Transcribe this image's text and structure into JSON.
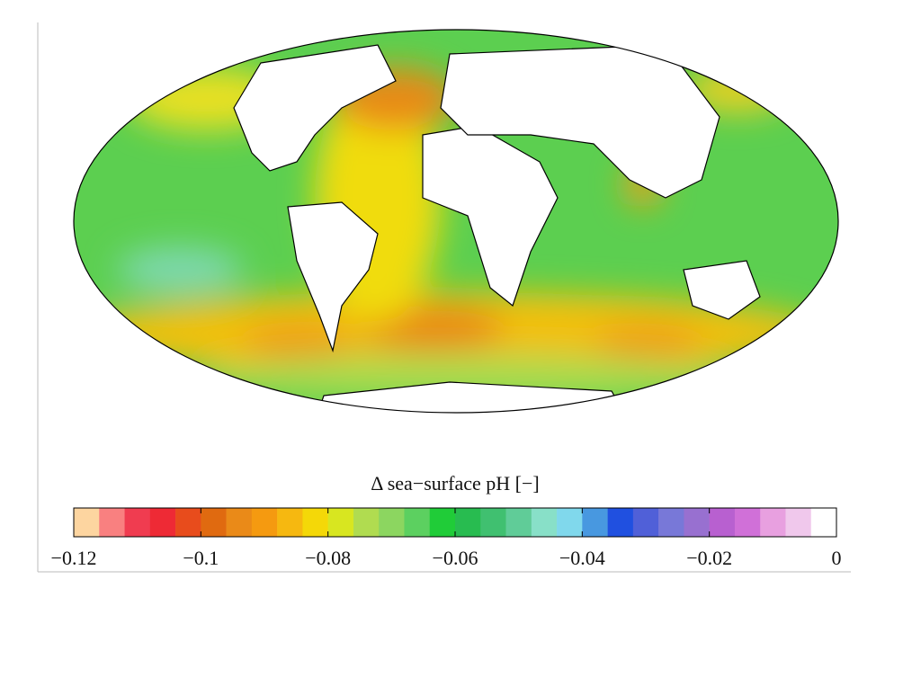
{
  "colorbar": {
    "title": "Δ sea−surface pH [−]",
    "lim": [
      -0.12,
      0
    ],
    "colors": [
      "#fdd5a0",
      "#f98080",
      "#f03c50",
      "#ee2a35",
      "#e84c1c",
      "#e06a10",
      "#ea8a18",
      "#f59a10",
      "#f6b810",
      "#f4d808",
      "#d8e620",
      "#b0dc50",
      "#8cd660",
      "#5cd060",
      "#20cc38",
      "#28bc50",
      "#40c070",
      "#60cc98",
      "#88e0c8",
      "#80d8ec",
      "#4898e0",
      "#2050e0",
      "#5060d8",
      "#7878d8",
      "#9870d0",
      "#b860d0",
      "#d070d8",
      "#e8a0e0",
      "#f0c8ec",
      "#ffffff"
    ],
    "ticks": [
      {
        "value": -0.12,
        "label": "−0.12"
      },
      {
        "value": -0.1,
        "label": "−0.1"
      },
      {
        "value": -0.08,
        "label": "−0.08"
      },
      {
        "value": -0.06,
        "label": "−0.06"
      },
      {
        "value": -0.04,
        "label": "−0.04"
      },
      {
        "value": -0.02,
        "label": "−0.02"
      },
      0
    ]
  }
}
